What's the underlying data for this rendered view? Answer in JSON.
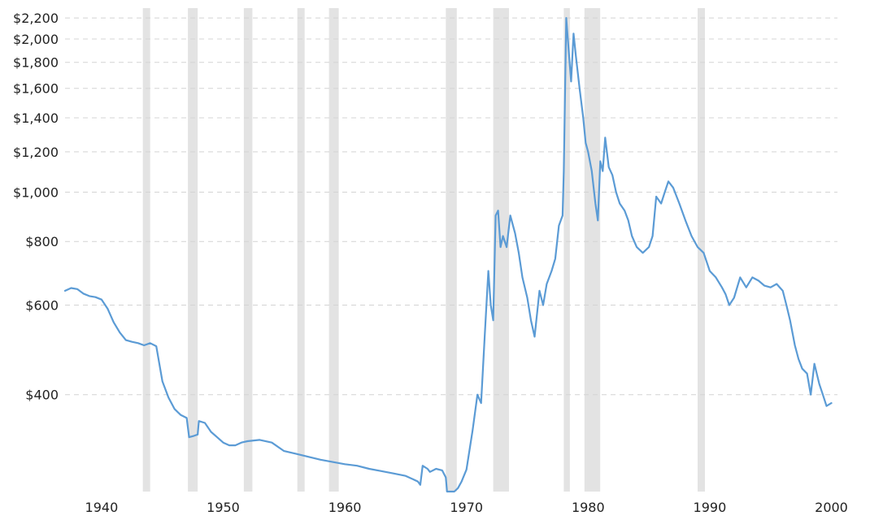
{
  "chart_data": {
    "type": "line",
    "title": "",
    "xlabel": "",
    "ylabel": "",
    "y_scale": "log",
    "xlim": [
      1937,
      2000.5
    ],
    "ylim": [
      258,
      2300
    ],
    "grid": "horizontal dashed",
    "colors": {
      "line": "#5b9bd5",
      "recession": "#e3e3e3",
      "grid": "#d4d4d4"
    },
    "y_ticks": [
      {
        "value": 400,
        "label": "$400"
      },
      {
        "value": 600,
        "label": "$600"
      },
      {
        "value": 800,
        "label": "$800"
      },
      {
        "value": 1000,
        "label": "$1,000"
      },
      {
        "value": 1200,
        "label": "$1,200"
      },
      {
        "value": 1400,
        "label": "$1,400"
      },
      {
        "value": 1600,
        "label": "$1,600"
      },
      {
        "value": 1800,
        "label": "$1,800"
      },
      {
        "value": 2000,
        "label": "$2,000"
      },
      {
        "value": 2200,
        "label": "$2,200"
      }
    ],
    "x_ticks": [
      {
        "value": 1940,
        "label": "1940"
      },
      {
        "value": 1950,
        "label": "1950"
      },
      {
        "value": 1960,
        "label": "1960"
      },
      {
        "value": 1970,
        "label": "1970"
      },
      {
        "value": 1980,
        "label": "1980"
      },
      {
        "value": 1990,
        "label": "1990"
      },
      {
        "value": 2000,
        "label": "2000"
      }
    ],
    "recessions": [
      [
        1943.4,
        1944.0
      ],
      [
        1947.1,
        1947.9
      ],
      [
        1951.7,
        1952.4
      ],
      [
        1956.1,
        1956.7
      ],
      [
        1958.7,
        1959.5
      ],
      [
        1968.3,
        1969.2
      ],
      [
        1972.2,
        1973.5
      ],
      [
        1978.0,
        1978.5
      ],
      [
        1979.7,
        1981.0
      ],
      [
        1989.0,
        1989.6
      ]
    ],
    "series": [
      {
        "x": [
          1937.0,
          1937.5,
          1938.0,
          1938.5,
          1939.0,
          1939.5,
          1940.0,
          1940.5,
          1941.0,
          1941.5,
          1942.0,
          1942.5,
          1943.0,
          1943.5,
          1944.0,
          1944.5,
          1945.0,
          1945.5,
          1946.0,
          1946.5,
          1947.0,
          1947.2,
          1947.6,
          1947.9,
          1948.0,
          1948.5,
          1949.0,
          1949.5,
          1950.0,
          1950.5,
          1951.0,
          1951.5,
          1952.0,
          1953.0,
          1954.0,
          1955.0,
          1956.0,
          1957.0,
          1958.0,
          1959.0,
          1960.0,
          1961.0,
          1962.0,
          1963.0,
          1964.0,
          1965.0,
          1966.0,
          1966.2,
          1966.4,
          1966.8,
          1967.0,
          1967.5,
          1968.0,
          1968.3,
          1968.4,
          1969.0,
          1969.3,
          1969.6,
          1970.0,
          1970.5,
          1970.9,
          1971.2,
          1971.5,
          1971.8,
          1972.0,
          1972.2,
          1972.4,
          1972.6,
          1972.8,
          1973.0,
          1973.3,
          1973.6,
          1974.0,
          1974.3,
          1974.6,
          1975.0,
          1975.3,
          1975.6,
          1976.0,
          1976.3,
          1976.6,
          1977.0,
          1977.3,
          1977.6,
          1977.9,
          1978.0,
          1978.2,
          1978.4,
          1978.6,
          1978.8,
          1979.0,
          1979.3,
          1979.6,
          1979.8,
          1980.0,
          1980.3,
          1980.6,
          1980.8,
          1981.0,
          1981.2,
          1981.4,
          1981.7,
          1982.0,
          1982.3,
          1982.6,
          1983.0,
          1983.3,
          1983.6,
          1984.0,
          1984.5,
          1985.0,
          1985.3,
          1985.6,
          1986.0,
          1986.3,
          1986.6,
          1987.0,
          1987.5,
          1988.0,
          1988.5,
          1989.0,
          1989.5,
          1990.0,
          1990.5,
          1991.0,
          1991.3,
          1991.6,
          1992.0,
          1992.5,
          1993.0,
          1993.5,
          1994.0,
          1994.5,
          1995.0,
          1995.5,
          1996.0,
          1996.3,
          1996.6,
          1997.0,
          1997.3,
          1997.6,
          1998.0,
          1998.3,
          1998.6,
          1999.0,
          1999.3,
          1999.6,
          2000.0
        ],
        "values": [
          640,
          648,
          645,
          632,
          625,
          622,
          615,
          590,
          555,
          530,
          512,
          508,
          505,
          500,
          505,
          498,
          425,
          395,
          375,
          365,
          360,
          330,
          332,
          334,
          355,
          352,
          338,
          330,
          322,
          318,
          318,
          322,
          324,
          326,
          322,
          310,
          306,
          302,
          298,
          295,
          292,
          290,
          286,
          283,
          280,
          277,
          270,
          266,
          290,
          286,
          282,
          286,
          284,
          275,
          258,
          258,
          262,
          270,
          285,
          340,
          400,
          385,
          520,
          700,
          600,
          560,
          900,
          920,
          780,
          820,
          780,
          900,
          830,
          760,
          680,
          620,
          560,
          520,
          640,
          600,
          660,
          700,
          740,
          860,
          900,
          1100,
          2200,
          1900,
          1650,
          2050,
          1850,
          1600,
          1400,
          1250,
          1200,
          1100,
          950,
          880,
          1150,
          1100,
          1280,
          1120,
          1080,
          1000,
          950,
          920,
          880,
          820,
          780,
          760,
          780,
          820,
          980,
          950,
          1000,
          1050,
          1020,
          950,
          880,
          820,
          780,
          760,
          700,
          680,
          650,
          630,
          600,
          620,
          680,
          650,
          680,
          670,
          655,
          650,
          660,
          640,
          600,
          560,
          500,
          470,
          450,
          440,
          400,
          460,
          420,
          400,
          380,
          385
        ]
      }
    ]
  }
}
